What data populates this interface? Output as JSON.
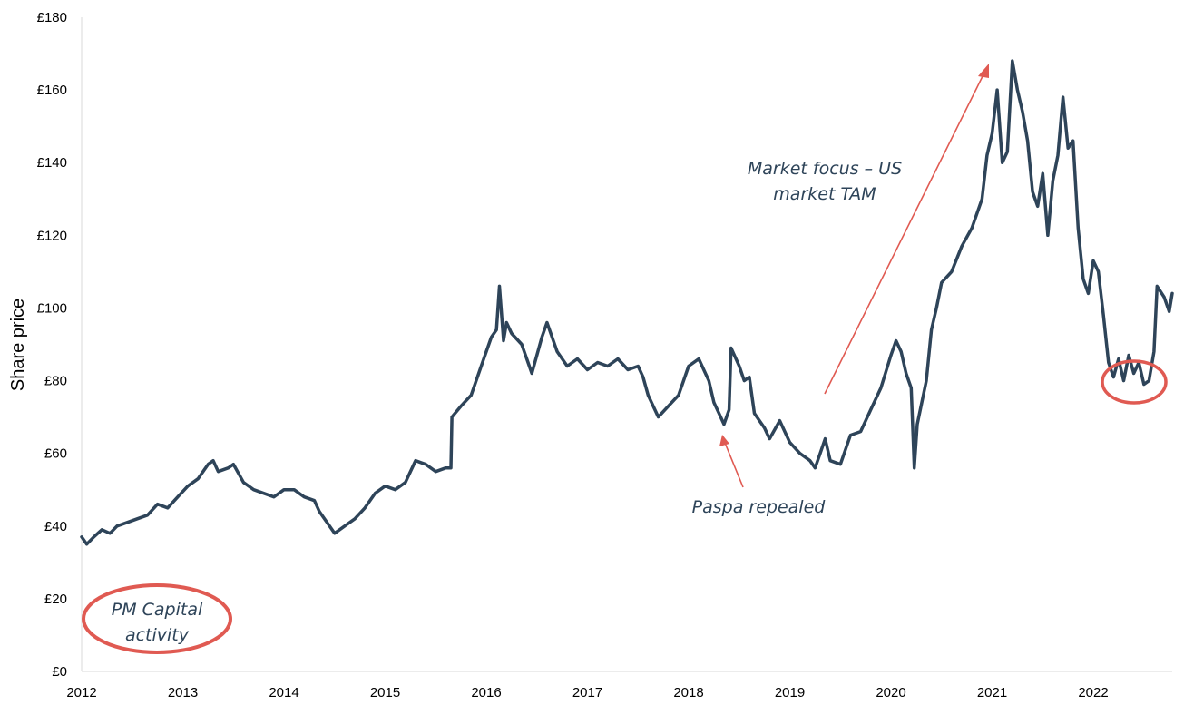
{
  "chart_data": {
    "type": "line",
    "ylabel": "Share price",
    "xlabel": "",
    "title": "",
    "ylim": [
      0,
      180
    ],
    "xlim": [
      2012,
      2022.78
    ],
    "grid": false,
    "x_ticks": [
      "2012",
      "2013",
      "2014",
      "2015",
      "2016",
      "2017",
      "2018",
      "2019",
      "2020",
      "2021",
      "2022"
    ],
    "y_ticks": [
      "£0",
      "£20",
      "£40",
      "£60",
      "£80",
      "£100",
      "£120",
      "£140",
      "£160",
      "£180"
    ],
    "series": [
      {
        "name": "",
        "color": "#2e4459",
        "points": [
          [
            2012.0,
            37
          ],
          [
            2012.05,
            35
          ],
          [
            2012.12,
            37
          ],
          [
            2012.2,
            39
          ],
          [
            2012.28,
            38
          ],
          [
            2012.35,
            40
          ],
          [
            2012.45,
            41
          ],
          [
            2012.55,
            42
          ],
          [
            2012.65,
            43
          ],
          [
            2012.75,
            46
          ],
          [
            2012.85,
            45
          ],
          [
            2012.95,
            48
          ],
          [
            2013.05,
            51
          ],
          [
            2013.15,
            53
          ],
          [
            2013.25,
            57
          ],
          [
            2013.3,
            58
          ],
          [
            2013.35,
            55
          ],
          [
            2013.45,
            56
          ],
          [
            2013.5,
            57
          ],
          [
            2013.6,
            52
          ],
          [
            2013.7,
            50
          ],
          [
            2013.8,
            49
          ],
          [
            2013.9,
            48
          ],
          [
            2014.0,
            50
          ],
          [
            2014.1,
            50
          ],
          [
            2014.2,
            48
          ],
          [
            2014.3,
            47
          ],
          [
            2014.35,
            44
          ],
          [
            2014.45,
            40
          ],
          [
            2014.5,
            38
          ],
          [
            2014.6,
            40
          ],
          [
            2014.7,
            42
          ],
          [
            2014.8,
            45
          ],
          [
            2014.9,
            49
          ],
          [
            2015.0,
            51
          ],
          [
            2015.1,
            50
          ],
          [
            2015.2,
            52
          ],
          [
            2015.3,
            58
          ],
          [
            2015.4,
            57
          ],
          [
            2015.5,
            55
          ],
          [
            2015.6,
            56
          ],
          [
            2015.65,
            56
          ],
          [
            2015.66,
            70
          ],
          [
            2015.75,
            73
          ],
          [
            2015.85,
            76
          ],
          [
            2015.95,
            84
          ],
          [
            2016.0,
            88
          ],
          [
            2016.05,
            92
          ],
          [
            2016.1,
            94
          ],
          [
            2016.13,
            106
          ],
          [
            2016.17,
            91
          ],
          [
            2016.2,
            96
          ],
          [
            2016.25,
            93
          ],
          [
            2016.35,
            90
          ],
          [
            2016.45,
            82
          ],
          [
            2016.55,
            92
          ],
          [
            2016.6,
            96
          ],
          [
            2016.7,
            88
          ],
          [
            2016.8,
            84
          ],
          [
            2016.9,
            86
          ],
          [
            2017.0,
            83
          ],
          [
            2017.1,
            85
          ],
          [
            2017.2,
            84
          ],
          [
            2017.3,
            86
          ],
          [
            2017.4,
            83
          ],
          [
            2017.5,
            84
          ],
          [
            2017.55,
            81
          ],
          [
            2017.6,
            76
          ],
          [
            2017.7,
            70
          ],
          [
            2017.8,
            73
          ],
          [
            2017.9,
            76
          ],
          [
            2018.0,
            84
          ],
          [
            2018.1,
            86
          ],
          [
            2018.2,
            80
          ],
          [
            2018.25,
            74
          ],
          [
            2018.3,
            71
          ],
          [
            2018.35,
            68
          ],
          [
            2018.4,
            72
          ],
          [
            2018.42,
            89
          ],
          [
            2018.5,
            84
          ],
          [
            2018.55,
            80
          ],
          [
            2018.6,
            81
          ],
          [
            2018.65,
            71
          ],
          [
            2018.75,
            67
          ],
          [
            2018.8,
            64
          ],
          [
            2018.9,
            69
          ],
          [
            2019.0,
            63
          ],
          [
            2019.1,
            60
          ],
          [
            2019.2,
            58
          ],
          [
            2019.25,
            56
          ],
          [
            2019.3,
            60
          ],
          [
            2019.35,
            64
          ],
          [
            2019.4,
            58
          ],
          [
            2019.5,
            57
          ],
          [
            2019.6,
            65
          ],
          [
            2019.7,
            66
          ],
          [
            2019.8,
            72
          ],
          [
            2019.9,
            78
          ],
          [
            2020.0,
            87
          ],
          [
            2020.05,
            91
          ],
          [
            2020.1,
            88
          ],
          [
            2020.15,
            82
          ],
          [
            2020.2,
            78
          ],
          [
            2020.23,
            56
          ],
          [
            2020.26,
            68
          ],
          [
            2020.35,
            80
          ],
          [
            2020.4,
            94
          ],
          [
            2020.45,
            100
          ],
          [
            2020.5,
            107
          ],
          [
            2020.6,
            110
          ],
          [
            2020.7,
            117
          ],
          [
            2020.8,
            122
          ],
          [
            2020.9,
            130
          ],
          [
            2020.95,
            142
          ],
          [
            2021.0,
            148
          ],
          [
            2021.05,
            160
          ],
          [
            2021.1,
            140
          ],
          [
            2021.15,
            143
          ],
          [
            2021.2,
            168
          ],
          [
            2021.25,
            160
          ],
          [
            2021.3,
            154
          ],
          [
            2021.35,
            146
          ],
          [
            2021.4,
            132
          ],
          [
            2021.45,
            128
          ],
          [
            2021.5,
            137
          ],
          [
            2021.55,
            120
          ],
          [
            2021.6,
            135
          ],
          [
            2021.65,
            142
          ],
          [
            2021.7,
            158
          ],
          [
            2021.75,
            144
          ],
          [
            2021.8,
            146
          ],
          [
            2021.85,
            122
          ],
          [
            2021.9,
            108
          ],
          [
            2021.95,
            104
          ],
          [
            2022.0,
            113
          ],
          [
            2022.05,
            110
          ],
          [
            2022.1,
            98
          ],
          [
            2022.15,
            85
          ],
          [
            2022.2,
            81
          ],
          [
            2022.25,
            86
          ],
          [
            2022.3,
            80
          ],
          [
            2022.35,
            87
          ],
          [
            2022.4,
            82
          ],
          [
            2022.45,
            85
          ],
          [
            2022.5,
            79
          ],
          [
            2022.55,
            80
          ],
          [
            2022.6,
            88
          ],
          [
            2022.63,
            106
          ],
          [
            2022.7,
            103
          ],
          [
            2022.75,
            99
          ],
          [
            2022.78,
            104
          ]
        ]
      }
    ],
    "annotations": [
      {
        "text_lines": [
          "Market focus – US",
          "market TAM"
        ],
        "color": "#2e4459"
      },
      {
        "text_lines": [
          "Paspa repealed"
        ],
        "color": "#2e4459"
      },
      {
        "text_lines": [
          "PM Capital",
          "activity"
        ],
        "color": "#2e4459",
        "circled": true
      }
    ],
    "highlight_color": "#e05a52"
  }
}
